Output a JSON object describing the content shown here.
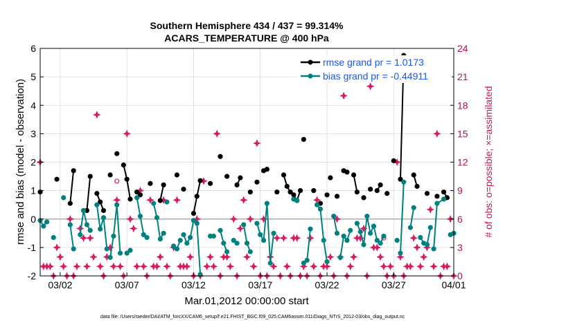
{
  "chart_data": {
    "type": "line",
    "title_line1": "Southern Hemisphere 434 / 437 = 99.314%",
    "title_line2": "ACARS_TEMPERATURE @ 400 hPa",
    "xlabel": "Mar.01,2012 00:00:00 start",
    "ylabel_left": "rmse and bias (model - observation)",
    "ylabel_right": "# of obs: o=possible; ×=assimilated",
    "footer": "data file: /Users/raeder/DAI/ATM_forcXX/CAM6_setup/f.e21.FHIST_BGC.f09_025.CAM6assim.011/Diags_NTrS_2012-03/obs_diag_output.nc",
    "x_range": [
      0.5,
      31.5
    ],
    "ylim_left": [
      -2,
      6
    ],
    "ylim_right": [
      0,
      24
    ],
    "x_ticks": [
      {
        "x": 2,
        "label": "03/02"
      },
      {
        "x": 7,
        "label": "03/07"
      },
      {
        "x": 12,
        "label": "03/12"
      },
      {
        "x": 17,
        "label": "03/17"
      },
      {
        "x": 22,
        "label": "03/22"
      },
      {
        "x": 27,
        "label": "03/27"
      },
      {
        "x": 32,
        "label": "04/01"
      }
    ],
    "y_ticks_left": [
      "-2",
      "-1",
      "0",
      "1",
      "2",
      "3",
      "4",
      "5",
      "6"
    ],
    "y_ticks_right": [
      "0",
      "3",
      "6",
      "9",
      "12",
      "15",
      "18",
      "21",
      "24"
    ],
    "legend": [
      {
        "label": "rmse grand pr = 1.0173",
        "color": "#000000"
      },
      {
        "label": "bias grand pr = -0.44911",
        "color": "#00807f"
      }
    ],
    "series": [
      {
        "name": "rmse",
        "color": "#000000",
        "segments": [
          [
            [
              0.5,
              0.95
            ]
          ],
          [
            [
              1.75,
              1.4
            ]
          ],
          [
            [
              2.75,
              0.55
            ],
            [
              3.0,
              1.7
            ]
          ],
          [
            [
              3.75,
              0.3
            ],
            [
              4.0,
              0.3
            ],
            [
              4.25,
              1.5
            ]
          ],
          [
            [
              4.75,
              0.9
            ],
            [
              5.0,
              0.6
            ],
            [
              5.25,
              0.3
            ]
          ],
          [
            [
              5.75,
              1.55
            ]
          ],
          [
            [
              6.25,
              2.3
            ]
          ],
          [
            [
              6.75,
              1.9
            ],
            [
              7.0,
              1.4
            ],
            [
              7.25,
              0.7
            ]
          ],
          [
            [
              7.75,
              0.95
            ],
            [
              8.0,
              0.85
            ]
          ],
          [
            [
              8.75,
              1.25
            ]
          ],
          [
            [
              9.5,
              0.65
            ],
            [
              9.75,
              1.2
            ]
          ],
          [
            [
              10.75,
              1.55
            ]
          ],
          [
            [
              11.25,
              1.05
            ]
          ],
          [
            [
              12.0,
              0.2
            ],
            [
              12.25,
              0.8
            ],
            [
              12.5,
              1.35
            ]
          ],
          [
            [
              13.25,
              1.25
            ]
          ],
          [
            [
              14.0,
              2.2
            ]
          ],
          [
            [
              14.5,
              1.5
            ]
          ],
          [
            [
              15.25,
              1.2
            ],
            [
              15.5,
              1.45
            ]
          ],
          [
            [
              16.25,
              0.95
            ]
          ],
          [
            [
              16.75,
              1.3
            ]
          ],
          [
            [
              17.25,
              1.7
            ],
            [
              17.5,
              1.75
            ]
          ],
          [
            [
              18.25,
              0.95
            ]
          ],
          [
            [
              18.75,
              1.55
            ],
            [
              19.0,
              1.15
            ],
            [
              19.25,
              0.95
            ]
          ],
          [
            [
              19.5,
              0.85
            ],
            [
              19.75,
              0.65
            ],
            [
              20.0,
              1.0
            ]
          ],
          [
            [
              20.25,
              2.8
            ]
          ],
          [
            [
              21.0,
              1.0
            ]
          ],
          [
            [
              21.5,
              0.55
            ]
          ],
          [
            [
              22.0,
              0.85
            ]
          ],
          [
            [
              22.25,
              1.45
            ]
          ],
          [
            [
              22.75,
              0.8
            ]
          ],
          [
            [
              23.25,
              1.7
            ],
            [
              23.5,
              1.65
            ]
          ],
          [
            [
              24.0,
              1.55
            ],
            [
              24.25,
              0.95
            ]
          ],
          [
            [
              24.75,
              0.75
            ]
          ],
          [
            [
              25.25,
              1.05
            ]
          ],
          [
            [
              25.75,
              1.0
            ],
            [
              26.0,
              1.2
            ]
          ],
          [
            [
              26.5,
              0.9
            ]
          ],
          [
            [
              27.0,
              2.05
            ]
          ],
          [
            [
              27.5,
              1.4
            ],
            [
              27.75,
              5.75
            ]
          ],
          [
            [
              28.5,
              1.55
            ],
            [
              28.75,
              1.15
            ]
          ],
          [
            [
              29.5,
              0.9
            ]
          ],
          [
            [
              30.25,
              0.8
            ]
          ],
          [
            [
              30.75,
              0.95
            ],
            [
              31.0,
              0.75
            ]
          ]
        ]
      },
      {
        "name": "bias",
        "color": "#00807f",
        "segments": [
          [
            [
              0.5,
              -0.05
            ],
            [
              0.75,
              -0.25
            ],
            [
              1.0,
              -0.1
            ]
          ],
          [
            [
              1.5,
              -0.65
            ]
          ],
          [
            [
              2.25,
              0.75
            ]
          ],
          [
            [
              2.75,
              -0.2
            ],
            [
              3.0,
              -1.05
            ]
          ],
          [
            [
              3.5,
              -0.55
            ],
            [
              3.75,
              0.3
            ],
            [
              4.0,
              -0.2
            ],
            [
              4.25,
              -0.4
            ]
          ],
          [
            [
              4.75,
              0.5
            ],
            [
              5.0,
              -0.35
            ],
            [
              5.25,
              0.05
            ],
            [
              5.5,
              -1.05
            ]
          ],
          [
            [
              5.75,
              -1.35
            ],
            [
              6.0,
              -0.6
            ],
            [
              6.25,
              0.5
            ],
            [
              6.5,
              -1.2
            ]
          ],
          [
            [
              7.0,
              -1.2
            ],
            [
              7.25,
              -1.1
            ]
          ],
          [
            [
              7.75,
              0.75
            ],
            [
              8.0,
              0.1
            ],
            [
              8.25,
              -0.55
            ],
            [
              8.5,
              -0.65
            ]
          ],
          [
            [
              9.0,
              0.55
            ],
            [
              9.25,
              0.05
            ],
            [
              9.5,
              -0.7
            ],
            [
              9.75,
              -0.5
            ]
          ],
          [
            [
              10.0,
              0.6
            ]
          ],
          [
            [
              10.5,
              -0.95
            ],
            [
              10.75,
              -1.05
            ],
            [
              11.0,
              -0.75
            ]
          ],
          [
            [
              11.25,
              -0.55
            ],
            [
              11.5,
              -0.85
            ],
            [
              11.75,
              -0.65
            ],
            [
              12.0,
              -0.05
            ],
            [
              12.25,
              -0.15
            ],
            [
              12.5,
              -1.95
            ]
          ],
          [
            [
              13.25,
              -0.6
            ],
            [
              13.5,
              -0.6
            ]
          ],
          [
            [
              14.0,
              -0.4
            ],
            [
              14.25,
              -0.85
            ],
            [
              14.5,
              -1.15
            ]
          ],
          [
            [
              15.0,
              -0.75
            ],
            [
              15.25,
              -0.85
            ]
          ],
          [
            [
              15.75,
              -0.2
            ],
            [
              16.0,
              -0.85
            ],
            [
              16.25,
              -1.15
            ]
          ],
          [
            [
              16.75,
              -0.15
            ],
            [
              17.0,
              -0.55
            ],
            [
              17.25,
              -0.75
            ],
            [
              17.5,
              0.55
            ],
            [
              17.75,
              -1.55
            ],
            [
              18.0,
              -0.5
            ]
          ],
          [
            [
              19.5,
              0.7
            ],
            [
              19.75,
              0.65
            ]
          ],
          [
            [
              20.25,
              -1.55
            ],
            [
              20.5,
              -1.45
            ],
            [
              20.75,
              -0.35
            ]
          ],
          [
            [
              21.25,
              0.5
            ],
            [
              21.5,
              0.35
            ],
            [
              21.75,
              -0.75
            ],
            [
              22.0,
              -1.5
            ]
          ],
          [
            [
              22.5,
              0.1
            ],
            [
              22.75,
              -0.5
            ]
          ],
          [
            [
              23.0,
              -1.35
            ],
            [
              23.25,
              -0.6
            ],
            [
              23.5,
              -0.75
            ],
            [
              23.75,
              -0.4
            ]
          ],
          [
            [
              24.25,
              -0.15
            ],
            [
              24.5,
              -0.45
            ],
            [
              24.75,
              -0.9
            ],
            [
              25.0,
              0.1
            ],
            [
              25.25,
              -0.5
            ],
            [
              25.5,
              -0.25
            ],
            [
              25.75,
              -0.75
            ]
          ],
          [
            [
              26.0,
              -0.85
            ],
            [
              26.25,
              -0.6
            ]
          ],
          [
            [
              27.25,
              -0.75
            ]
          ],
          [
            [
              27.5,
              -1.2
            ],
            [
              27.75,
              1.3
            ]
          ],
          [
            [
              28.25,
              -0.3
            ],
            [
              28.5,
              0.4
            ]
          ],
          [
            [
              29.0,
              -0.65
            ],
            [
              29.25,
              -0.85
            ],
            [
              29.5,
              -0.9
            ],
            [
              29.75,
              -0.3
            ]
          ],
          [
            [
              30.0,
              -1.05
            ],
            [
              30.25,
              0.55
            ],
            [
              30.75,
              0.7
            ]
          ],
          [
            [
              31.25,
              -0.55
            ],
            [
              31.5,
              -0.5
            ]
          ]
        ]
      }
    ],
    "obs_assimilated": [
      [
        0.5,
        12
      ],
      [
        0.75,
        1
      ],
      [
        1.0,
        1
      ],
      [
        1.25,
        1
      ],
      [
        1.5,
        0
      ],
      [
        1.75,
        3
      ],
      [
        2.0,
        2
      ],
      [
        2.25,
        1
      ],
      [
        2.5,
        0
      ],
      [
        2.75,
        6
      ],
      [
        3.0,
        0
      ],
      [
        3.25,
        1
      ],
      [
        3.5,
        5
      ],
      [
        3.75,
        4
      ],
      [
        4.0,
        1
      ],
      [
        4.25,
        4
      ],
      [
        4.5,
        2
      ],
      [
        4.75,
        17
      ],
      [
        5.0,
        1
      ],
      [
        5.25,
        0
      ],
      [
        5.5,
        2
      ],
      [
        5.75,
        3
      ],
      [
        6.0,
        1
      ],
      [
        6.25,
        8
      ],
      [
        6.5,
        1
      ],
      [
        6.75,
        0
      ],
      [
        7.0,
        15
      ],
      [
        7.25,
        6
      ],
      [
        7.5,
        5
      ],
      [
        7.75,
        1
      ],
      [
        8.0,
        9
      ],
      [
        8.25,
        1
      ],
      [
        8.5,
        0
      ],
      [
        8.75,
        8
      ],
      [
        9.0,
        1
      ],
      [
        9.25,
        1
      ],
      [
        9.5,
        2
      ],
      [
        9.75,
        8
      ],
      [
        10.0,
        1
      ],
      [
        10.25,
        0
      ],
      [
        10.5,
        3
      ],
      [
        10.75,
        8
      ],
      [
        11.0,
        1
      ],
      [
        11.25,
        1
      ],
      [
        11.5,
        1
      ],
      [
        11.75,
        2
      ],
      [
        12.0,
        0
      ],
      [
        12.25,
        6
      ],
      [
        12.5,
        0
      ],
      [
        12.75,
        10
      ],
      [
        13.0,
        1
      ],
      [
        13.25,
        2
      ],
      [
        13.5,
        1
      ],
      [
        13.75,
        15
      ],
      [
        14.0,
        0
      ],
      [
        14.25,
        2
      ],
      [
        14.5,
        2
      ],
      [
        14.75,
        1
      ],
      [
        15.0,
        6
      ],
      [
        15.25,
        0
      ],
      [
        15.5,
        5
      ],
      [
        15.75,
        8
      ],
      [
        16.0,
        2
      ],
      [
        16.25,
        6
      ],
      [
        16.5,
        1
      ],
      [
        16.75,
        14
      ],
      [
        17.0,
        0
      ],
      [
        17.25,
        6
      ],
      [
        17.5,
        0
      ],
      [
        17.75,
        2
      ],
      [
        18.0,
        1
      ],
      [
        18.25,
        4
      ],
      [
        18.5,
        0
      ],
      [
        18.75,
        4
      ],
      [
        19.0,
        1
      ],
      [
        19.25,
        0
      ],
      [
        19.5,
        4
      ],
      [
        19.75,
        4
      ],
      [
        20.0,
        0
      ],
      [
        20.25,
        1
      ],
      [
        20.5,
        0
      ],
      [
        20.75,
        4
      ],
      [
        21.0,
        1
      ],
      [
        21.25,
        8
      ],
      [
        21.5,
        0
      ],
      [
        21.75,
        1
      ],
      [
        22.0,
        1
      ],
      [
        22.25,
        2
      ],
      [
        22.5,
        0
      ],
      [
        22.75,
        6
      ],
      [
        23.0,
        2
      ],
      [
        23.25,
        19
      ],
      [
        23.5,
        0
      ],
      [
        23.75,
        1
      ],
      [
        24.0,
        2
      ],
      [
        24.25,
        4
      ],
      [
        24.5,
        4
      ],
      [
        24.75,
        5
      ],
      [
        25.0,
        0
      ],
      [
        25.25,
        20
      ],
      [
        25.5,
        3
      ],
      [
        25.75,
        3
      ],
      [
        26.0,
        2
      ],
      [
        26.25,
        1
      ],
      [
        26.5,
        0
      ],
      [
        26.75,
        1
      ],
      [
        27.0,
        0
      ],
      [
        27.25,
        12
      ],
      [
        27.5,
        2
      ],
      [
        27.75,
        0
      ],
      [
        28.0,
        1
      ],
      [
        28.25,
        1
      ],
      [
        28.5,
        4
      ],
      [
        28.75,
        3
      ],
      [
        29.0,
        1
      ],
      [
        29.25,
        2
      ],
      [
        29.5,
        3
      ],
      [
        29.75,
        7
      ],
      [
        30.0,
        1
      ],
      [
        30.25,
        15
      ],
      [
        30.5,
        0
      ],
      [
        30.75,
        1
      ],
      [
        31.0,
        1
      ],
      [
        31.25,
        6
      ],
      [
        31.5,
        0
      ]
    ],
    "obs_possible_only": [
      [
        6.25,
        10
      ],
      [
        26.25,
        4
      ]
    ]
  }
}
